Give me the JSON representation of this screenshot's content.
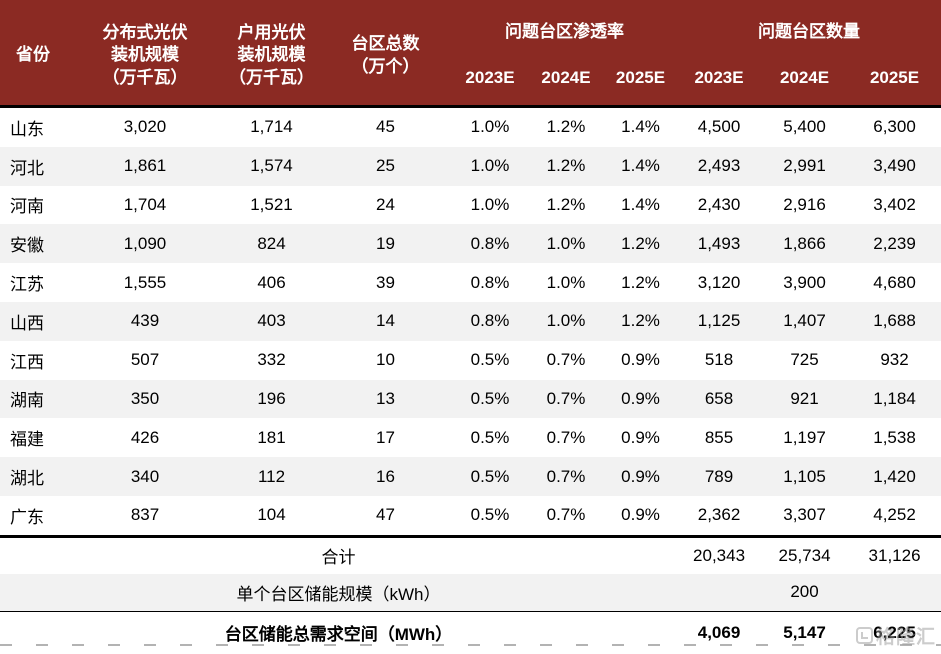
{
  "chart_data": {
    "type": "table",
    "header": {
      "province": "省份",
      "distributed_pv": "分布式光伏\n装机规模\n（万千瓦）",
      "household_pv": "户用光伏\n装机规模\n（万千瓦）",
      "station_total": "台区总数\n（万个）",
      "penetration_group": "问题台区渗透率",
      "count_group": "问题台区数量",
      "penetration_years": [
        "2023E",
        "2024E",
        "2025E"
      ],
      "count_years": [
        "2023E",
        "2024E",
        "2025E"
      ]
    },
    "rows": [
      {
        "province": "山东",
        "values": [
          "3,020",
          "1,714",
          "45",
          "1.0%",
          "1.2%",
          "1.4%",
          "4,500",
          "5,400",
          "6,300"
        ]
      },
      {
        "province": "河北",
        "values": [
          "1,861",
          "1,574",
          "25",
          "1.0%",
          "1.2%",
          "1.4%",
          "2,493",
          "2,991",
          "3,490"
        ]
      },
      {
        "province": "河南",
        "values": [
          "1,704",
          "1,521",
          "24",
          "1.0%",
          "1.2%",
          "1.4%",
          "2,430",
          "2,916",
          "3,402"
        ]
      },
      {
        "province": "安徽",
        "values": [
          "1,090",
          "824",
          "19",
          "0.8%",
          "1.0%",
          "1.2%",
          "1,493",
          "1,866",
          "2,239"
        ]
      },
      {
        "province": "江苏",
        "values": [
          "1,555",
          "406",
          "39",
          "0.8%",
          "1.0%",
          "1.2%",
          "3,120",
          "3,900",
          "4,680"
        ]
      },
      {
        "province": "山西",
        "values": [
          "439",
          "403",
          "14",
          "0.8%",
          "1.0%",
          "1.2%",
          "1,125",
          "1,407",
          "1,688"
        ]
      },
      {
        "province": "江西",
        "values": [
          "507",
          "332",
          "10",
          "0.5%",
          "0.7%",
          "0.9%",
          "518",
          "725",
          "932"
        ]
      },
      {
        "province": "湖南",
        "values": [
          "350",
          "196",
          "13",
          "0.5%",
          "0.7%",
          "0.9%",
          "658",
          "921",
          "1,184"
        ]
      },
      {
        "province": "福建",
        "values": [
          "426",
          "181",
          "17",
          "0.5%",
          "0.7%",
          "0.9%",
          "855",
          "1,197",
          "1,538"
        ]
      },
      {
        "province": "湖北",
        "values": [
          "340",
          "112",
          "16",
          "0.5%",
          "0.7%",
          "0.9%",
          "789",
          "1,105",
          "1,420"
        ]
      },
      {
        "province": "广东",
        "values": [
          "837",
          "104",
          "47",
          "0.5%",
          "0.7%",
          "0.9%",
          "2,362",
          "3,307",
          "4,252"
        ]
      }
    ],
    "footer": {
      "total": {
        "label": "合计",
        "values": [
          "20,343",
          "25,734",
          "31,126"
        ]
      },
      "unit_capacity": {
        "label": "单个台区储能规模（kWh）",
        "values": [
          "",
          "200",
          ""
        ]
      },
      "total_demand": {
        "label": "台区储能总需求空间（MWh）",
        "values": [
          "4,069",
          "5,147",
          "6,225"
        ]
      }
    }
  },
  "colors": {
    "header_bg": "#8B2A23",
    "stripe": "#F2F2F2",
    "header_text": "#FFFFFF",
    "body_text": "#000000"
  },
  "watermark": {
    "text": "格隆汇"
  }
}
